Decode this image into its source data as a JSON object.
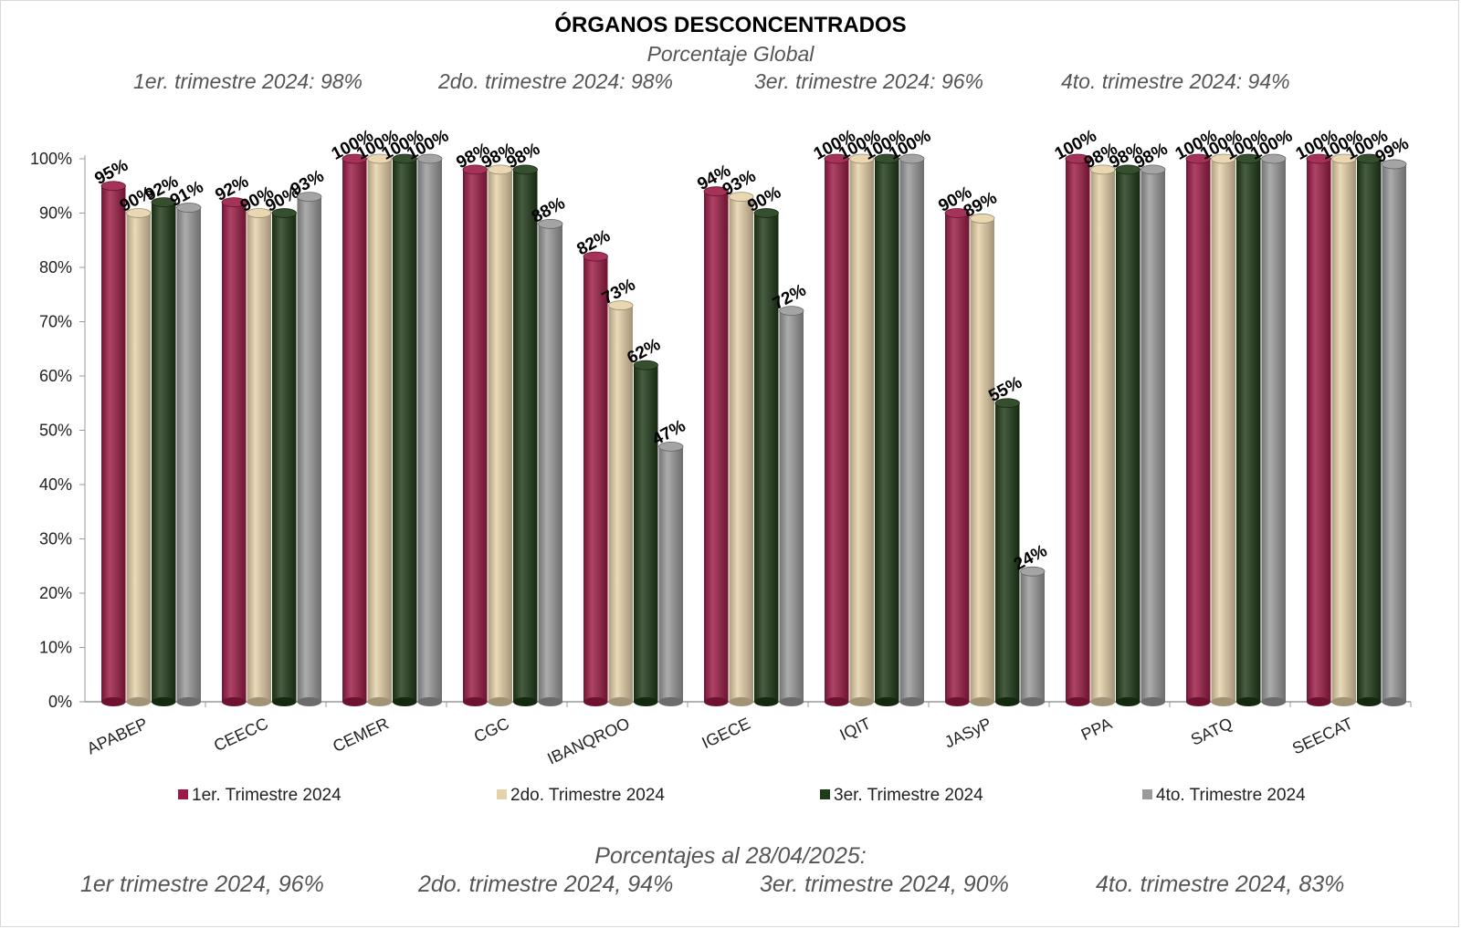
{
  "header": {
    "title": "ÓRGANOS DESCONCENTRADOS",
    "subtitle": "Porcentaje Global",
    "quarters": [
      "1er. trimestre 2024: 98%",
      "2do. trimestre 2024: 98%",
      "3er. trimestre 2024: 96%",
      "4to. trimestre 2024: 94%"
    ]
  },
  "footer": {
    "title": "Porcentajes al 28/04/2025:",
    "quarters": [
      "1er trimestre  2024,  96%",
      "2do. trimestre 2024, 94%",
      "3er. trimestre 2024, 90%",
      "4to. trimestre 2024, 83%"
    ]
  },
  "chart_data": {
    "type": "bar",
    "title": "ÓRGANOS DESCONCENTRADOS",
    "categories": [
      "APABEP",
      "CEECC",
      "CEMER",
      "CGC",
      "IBANQROO",
      "IGECE",
      "IQIT",
      "JASyP",
      "PPA",
      "SATQ",
      "SEECAT"
    ],
    "series": [
      {
        "name": "1er. Trimestre 2024",
        "color": "#9b1b45",
        "values": [
          95,
          92,
          100,
          98,
          82,
          94,
          100,
          90,
          100,
          100,
          100
        ]
      },
      {
        "name": "2do. Trimestre 2024",
        "color": "#e6d2a8",
        "values": [
          90,
          90,
          100,
          98,
          73,
          93,
          100,
          89,
          98,
          100,
          100
        ]
      },
      {
        "name": "3er. Trimestre 2024",
        "color": "#1e3a17",
        "values": [
          92,
          90,
          100,
          98,
          62,
          90,
          100,
          55,
          98,
          100,
          100
        ]
      },
      {
        "name": "4to. Trimestre 2024",
        "color": "#9a9a9a",
        "values": [
          91,
          93,
          100,
          88,
          47,
          72,
          100,
          24,
          98,
          100,
          99
        ]
      }
    ],
    "y_ticks": [
      "0%",
      "10%",
      "20%",
      "30%",
      "40%",
      "50%",
      "60%",
      "70%",
      "80%",
      "90%",
      "100%"
    ],
    "ylim": [
      0,
      100
    ],
    "unit": "%",
    "legend": "bottom",
    "grid": false
  }
}
